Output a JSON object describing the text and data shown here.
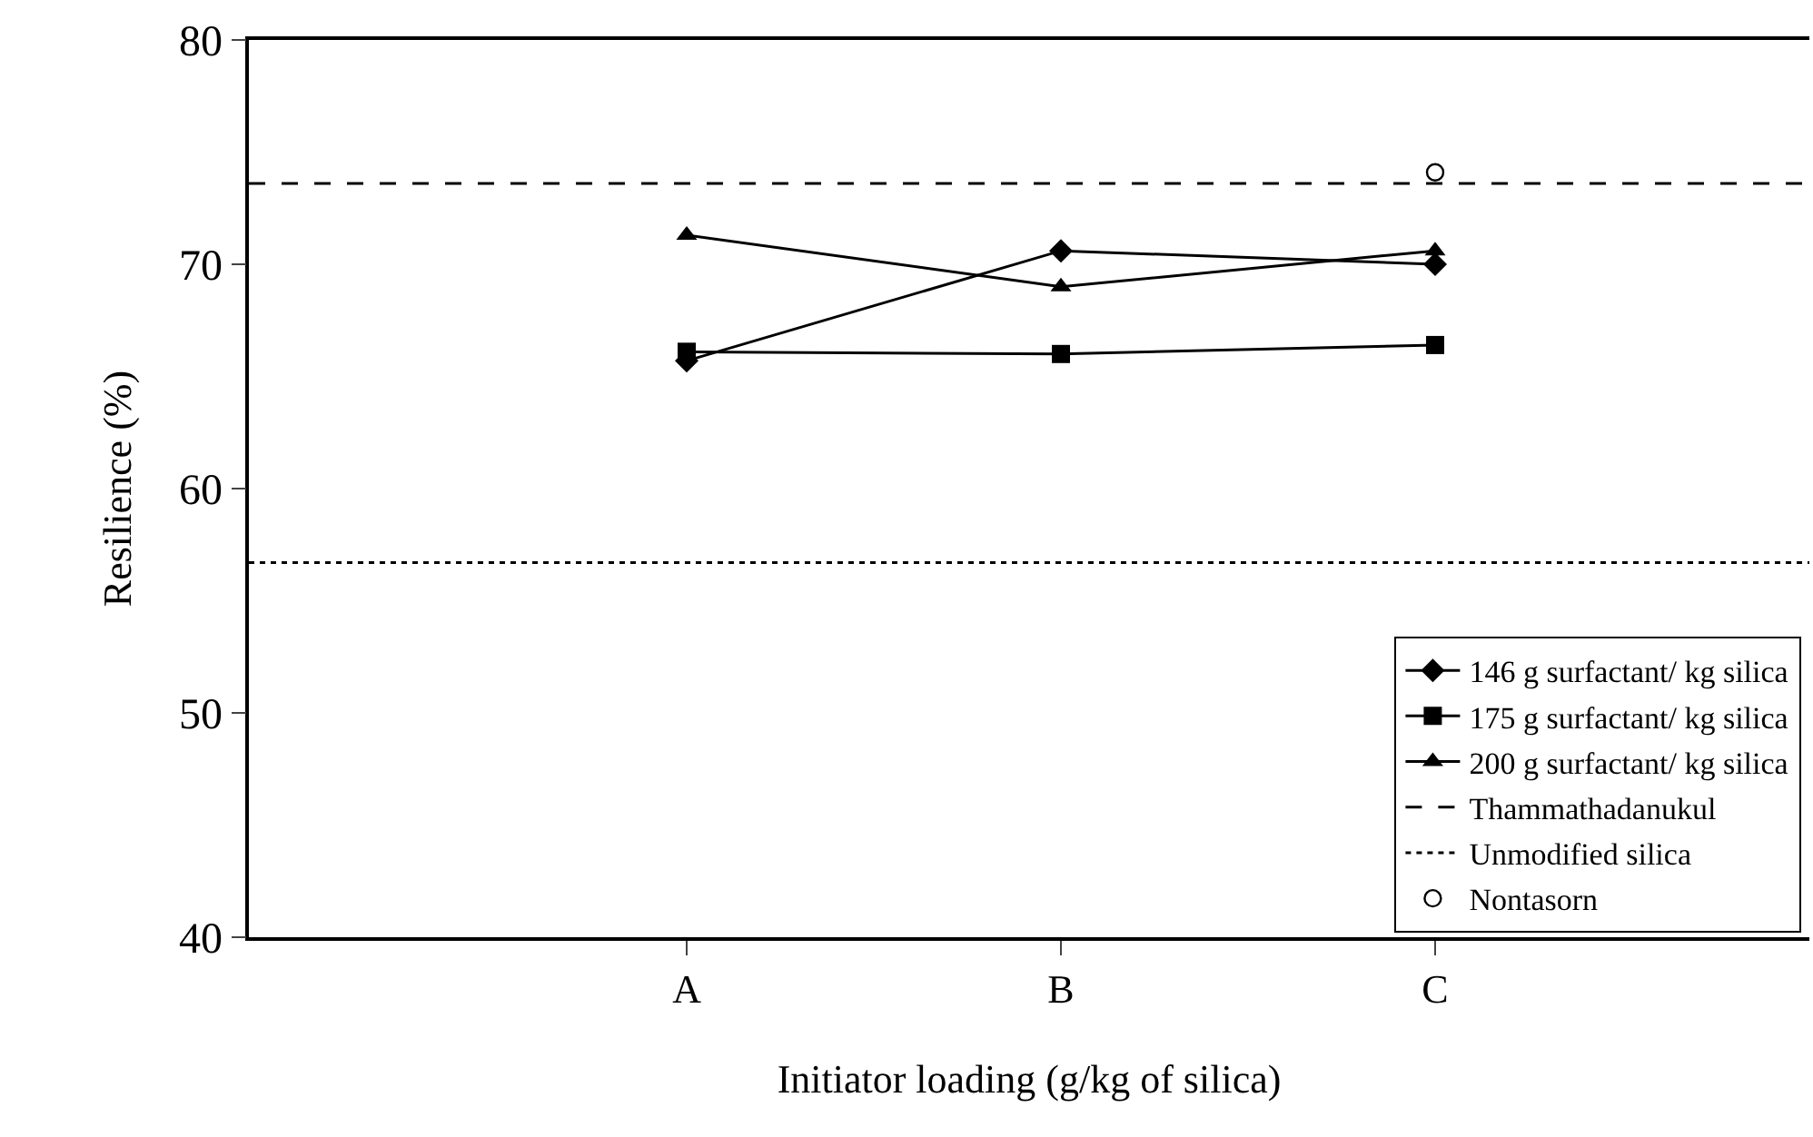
{
  "chart_data": {
    "type": "line",
    "xlabel": "Initiator loading (g/kg of silica)",
    "ylabel": "Resilience (%)",
    "categories": [
      "A",
      "B",
      "C"
    ],
    "ylim": [
      40,
      80
    ],
    "yticks": [
      40,
      50,
      60,
      70,
      80
    ],
    "grid": false,
    "legend": "bottom right",
    "line_style": "solid",
    "series": [
      {
        "name": "146 g surfactant/ kg silica",
        "color": "#000000",
        "marker": "diamond",
        "values": [
          65.7,
          70.6,
          70.0
        ]
      },
      {
        "name": "175 g surfactant/ kg silica",
        "color": "#000000",
        "marker": "square",
        "values": [
          66.1,
          66.0,
          66.4
        ]
      },
      {
        "name": "200 g surfactant/ kg silica",
        "color": "#000000",
        "marker": "triangle",
        "values": [
          71.3,
          69.0,
          70.6
        ]
      },
      {
        "name": "Nontasorn",
        "type": "scatter",
        "color": "#000000",
        "marker": "circle-open",
        "x": [
          "C"
        ],
        "values": [
          74.1
        ]
      }
    ],
    "ref_lines": [
      {
        "axis": "y",
        "value": 73.6,
        "label": "Thammathadanukul",
        "line_style": "dashed",
        "color": "#000000"
      },
      {
        "axis": "y",
        "value": 56.7,
        "label": "Unmodified silica",
        "line_style": "dotted",
        "color": "#000000"
      }
    ]
  }
}
